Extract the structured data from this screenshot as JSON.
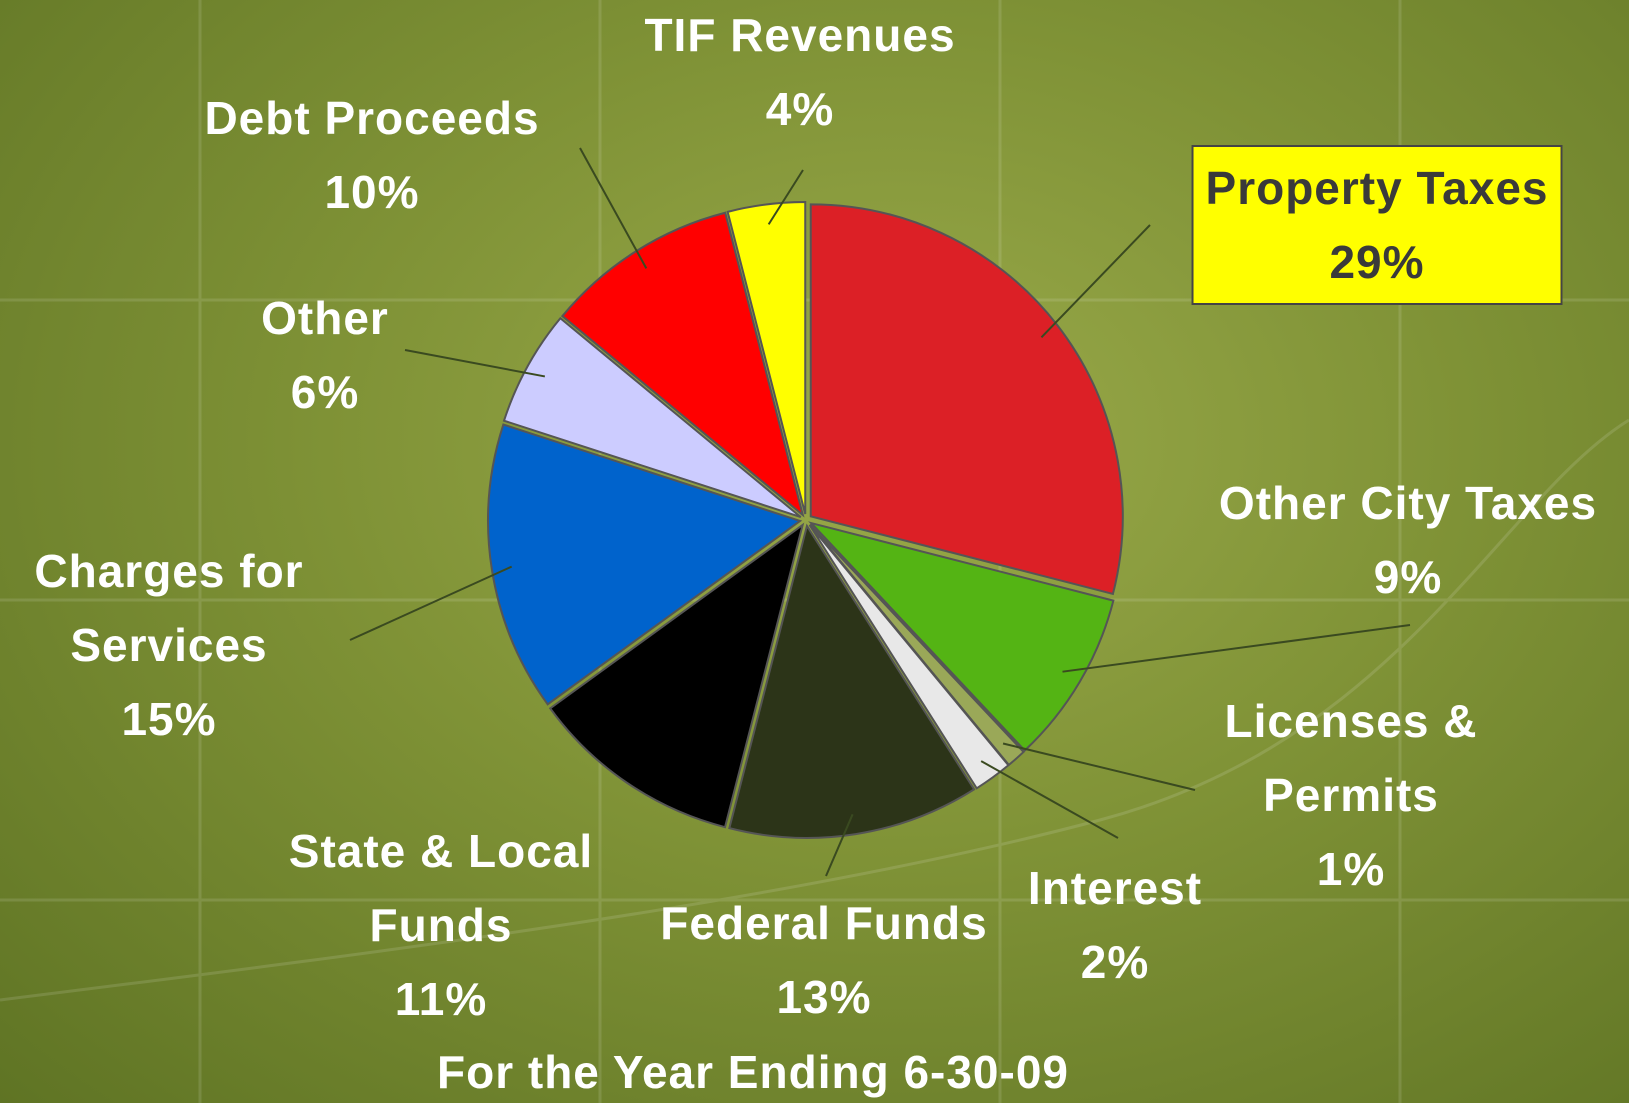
{
  "chart_data": {
    "type": "pie",
    "subtitle": "For the Year Ending 6-30-09",
    "categories": [
      "Property Taxes",
      "Other City Taxes",
      "Licenses & Permits",
      "Interest",
      "Federal Funds",
      "State & Local Funds",
      "Charges for Services",
      "Other",
      "Debt Proceeds",
      "TIF Revenues"
    ],
    "values": [
      29,
      9,
      1,
      2,
      13,
      11,
      15,
      6,
      10,
      4
    ],
    "value_labels": [
      "29%",
      "9%",
      "1%",
      "2%",
      "13%",
      "11%",
      "15%",
      "6%",
      "10%",
      "4%"
    ],
    "colors": [
      "#dc2026",
      "#54b414",
      "#9aa858",
      "#e8e8e8",
      "#2c3418",
      "#000000",
      "#0063cc",
      "#ccccff",
      "#ff0000",
      "#ffff00"
    ]
  }
}
